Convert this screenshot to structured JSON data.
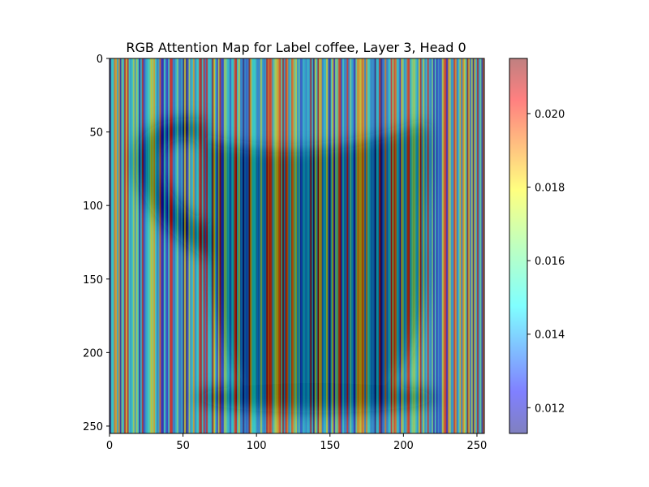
{
  "chart_data": {
    "type": "heatmap",
    "title": "RGB Attention Map for Label coffee, Layer 3, Head 0",
    "xlabel": "",
    "ylabel": "",
    "xlim": [
      0,
      255
    ],
    "ylim": [
      255,
      0
    ],
    "xticks": [
      "0",
      "50",
      "100",
      "150",
      "200",
      "250"
    ],
    "yticks": [
      "0",
      "50",
      "100",
      "150",
      "200",
      "250"
    ],
    "colorbar": {
      "range": [
        0.0113,
        0.0215
      ],
      "ticks": [
        "0.012",
        "0.014",
        "0.016",
        "0.018",
        "0.020"
      ],
      "colormap": "jet",
      "alpha": 0.5
    },
    "background_image": "coffee-mug-photo",
    "pattern": "vertical-stripes",
    "grid": false
  }
}
